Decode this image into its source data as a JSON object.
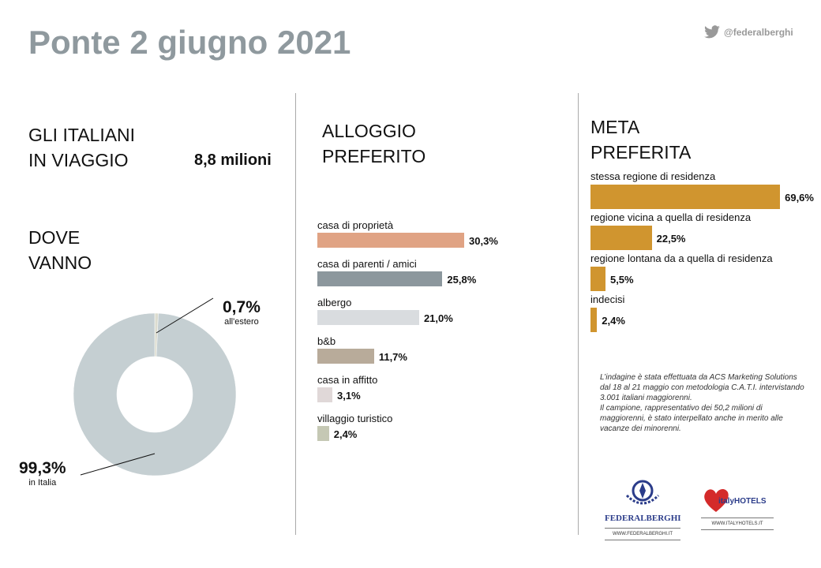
{
  "header": {
    "title": "Ponte 2 giugno 2021",
    "twitter_handle": "@federalberghi",
    "twitter_icon": "twitter-bird-icon"
  },
  "travel": {
    "heading_line1": "GLI ITALIANI",
    "heading_line2": "IN VIAGGIO",
    "value": "8,8 milioni"
  },
  "destination": {
    "heading_line1": "DOVE",
    "heading_line2": "VANNO",
    "abroad": {
      "value": "0,7%",
      "label": "all'estero"
    },
    "italy": {
      "value": "99,3%",
      "label": "in Italia"
    }
  },
  "accommodation": {
    "heading_line1": "ALLOGGIO",
    "heading_line2": "PREFERITO"
  },
  "meta": {
    "heading_line1": "META",
    "heading_line2": "PREFERITA"
  },
  "note": {
    "line1": "L’indagine è stata effettuata da ACS Marketing Solutions dal 18 al 21 maggio con metodologia C.A.T.I. intervistando 3.001 italiani maggiorenni.",
    "line2": "Il campione, rappresentativo dei 50,2 milioni di maggiorenni, è stato interpellato anche in merito alle vacanze dei minorenni."
  },
  "logos": {
    "federalberghi": {
      "name": "FEDERALBERGHI",
      "arc": "L'OSPITALITÀ ITALIANA",
      "url": "WWW.FEDERALBERGHI.IT"
    },
    "italyhotels": {
      "name": "italyHOTELS",
      "url": "WWW.ITALYHOTELS.IT"
    }
  },
  "chart_data": [
    {
      "type": "pie",
      "subtype": "donut",
      "categories": [
        "in Italia",
        "all'estero"
      ],
      "values": [
        99.3,
        0.7
      ],
      "labels": [
        "99,3%",
        "0,7%"
      ],
      "colors": [
        "#c5cfd2",
        "#dcdccf"
      ]
    },
    {
      "type": "bar",
      "orientation": "horizontal",
      "categories": [
        "casa di proprietà",
        "casa di parenti / amici",
        "albergo",
        "b&b",
        "casa in affitto",
        "villaggio turistico"
      ],
      "values": [
        30.3,
        25.8,
        21.0,
        11.7,
        3.1,
        2.4
      ],
      "labels": [
        "30,3%",
        "25,8%",
        "21,0%",
        "11,7%",
        "3,1%",
        "2,4%"
      ],
      "colors": [
        "#e0a384",
        "#8c979d",
        "#d9dcdf",
        "#b8ab9a",
        "#e0d8d8",
        "#c5c8b4"
      ]
    },
    {
      "type": "bar",
      "orientation": "horizontal",
      "categories": [
        "stessa regione di residenza",
        "regione vicina a quella di residenza",
        "regione lontana da a quella di residenza",
        "indecisi"
      ],
      "values": [
        69.6,
        22.5,
        5.5,
        2.4
      ],
      "labels": [
        "69,6%",
        "22,5%",
        "5,5%",
        "2,4%"
      ],
      "colors": [
        "#d0952f"
      ]
    }
  ]
}
